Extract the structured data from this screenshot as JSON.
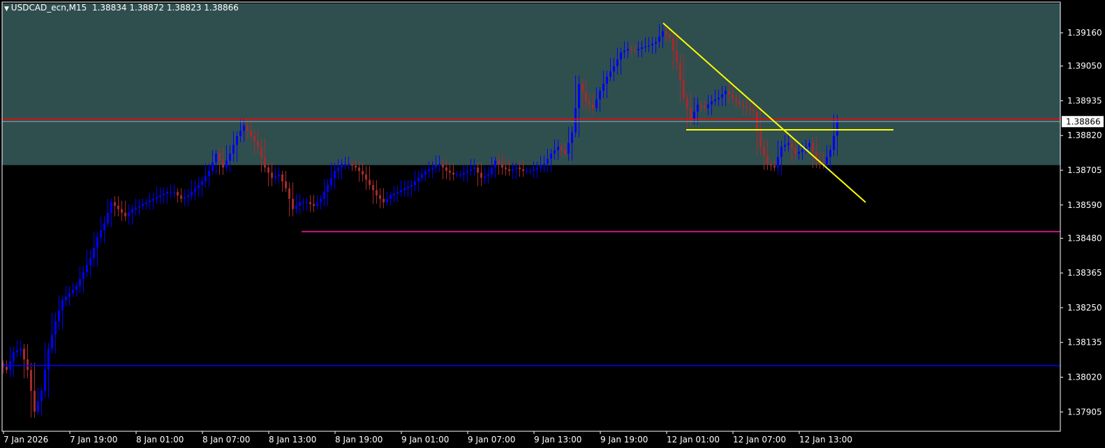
{
  "header": {
    "symbol_timeframe": "USDCAD_ecn,M15",
    "ohlc": "1.38834 1.38872 1.38823 1.38866",
    "menu_icon": "triangle-down-icon"
  },
  "colors": {
    "background": "#000000",
    "zone": "#2f4f4f",
    "bull": "#0000ff",
    "bear": "#a52a2a",
    "axis": "#ffffff",
    "resistance": "#ff0000",
    "bid": "#778899",
    "support": "#c71585",
    "low_line": "#0000ff",
    "trendline": "#ffff00"
  },
  "chart_data": {
    "type": "candlestick",
    "symbol": "USDCAD_ecn",
    "timeframe": "M15",
    "ylim": [
      1.3786,
      1.3926
    ],
    "y_ticks": [
      "1.39160",
      "1.39050",
      "1.38935",
      "1.38820",
      "1.38705",
      "1.38590",
      "1.38480",
      "1.38365",
      "1.38250",
      "1.38135",
      "1.38020",
      "1.37905"
    ],
    "x_ticks": [
      "7 Jan 2026",
      "7 Jan 19:00",
      "8 Jan 01:00",
      "8 Jan 07:00",
      "8 Jan 13:00",
      "8 Jan 19:00",
      "9 Jan 01:00",
      "9 Jan 07:00",
      "9 Jan 13:00",
      "9 Jan 19:00",
      "12 Jan 01:00",
      "12 Jan 07:00",
      "12 Jan 13:00"
    ],
    "current_price": "1.38866",
    "closes": [
      1.38044,
      1.38102,
      1.38114,
      1.38044,
      1.37906,
      1.37975,
      1.38114,
      1.38206,
      1.38275,
      1.38298,
      1.38322,
      1.38368,
      1.38414,
      1.38483,
      1.38529,
      1.38599,
      1.38576,
      1.38553,
      1.38576,
      1.38587,
      1.38599,
      1.3861,
      1.38622,
      1.38633,
      1.38633,
      1.3861,
      1.38622,
      1.38645,
      1.38668,
      1.38703,
      1.3876,
      1.38714,
      1.3876,
      1.38818,
      1.38853,
      1.38818,
      1.38783,
      1.38714,
      1.3868,
      1.38691,
      1.38645,
      1.38576,
      1.38599,
      1.38599,
      1.38587,
      1.3861,
      1.38656,
      1.38703,
      1.38726,
      1.38726,
      1.38714,
      1.38691,
      1.38656,
      1.38622,
      1.38599,
      1.38622,
      1.38633,
      1.38645,
      1.38656,
      1.3868,
      1.38703,
      1.38714,
      1.38726,
      1.38703,
      1.38691,
      1.38691,
      1.38703,
      1.38714,
      1.3868,
      1.38691,
      1.38737,
      1.38714,
      1.38703,
      1.38714,
      1.38703,
      1.38703,
      1.38714,
      1.38726,
      1.3876,
      1.38783,
      1.3876,
      1.3883,
      1.38991,
      1.38934,
      1.38911,
      1.38968,
      1.39015,
      1.39049,
      1.39095,
      1.39107,
      1.39102,
      1.39112,
      1.39118,
      1.3913,
      1.39165,
      1.39142,
      1.39061,
      1.38945,
      1.38876,
      1.38922,
      1.38911,
      1.38934,
      1.38945,
      1.38968,
      1.38945,
      1.38922,
      1.38911,
      1.38899,
      1.38783,
      1.38726,
      1.38714,
      1.38783,
      1.38795,
      1.3876,
      1.38772,
      1.38795,
      1.38737,
      1.38726,
      1.38772,
      1.38866
    ],
    "zone": {
      "top": 1.39257,
      "bottom": 1.38722
    },
    "horizontal_lines": [
      {
        "kind": "resistance",
        "price": 1.38874
      },
      {
        "kind": "bid",
        "price": 1.38866
      },
      {
        "kind": "support",
        "price": 1.38502,
        "from_index": 42.7
      },
      {
        "kind": "low_line",
        "price": 1.38058
      }
    ],
    "trendlines": [
      {
        "from": [
          94.5,
          1.39192
        ],
        "to": [
          123.5,
          1.38599
        ]
      },
      {
        "from": [
          97.8,
          1.38839
        ],
        "to": [
          127.5,
          1.38839
        ]
      }
    ]
  }
}
